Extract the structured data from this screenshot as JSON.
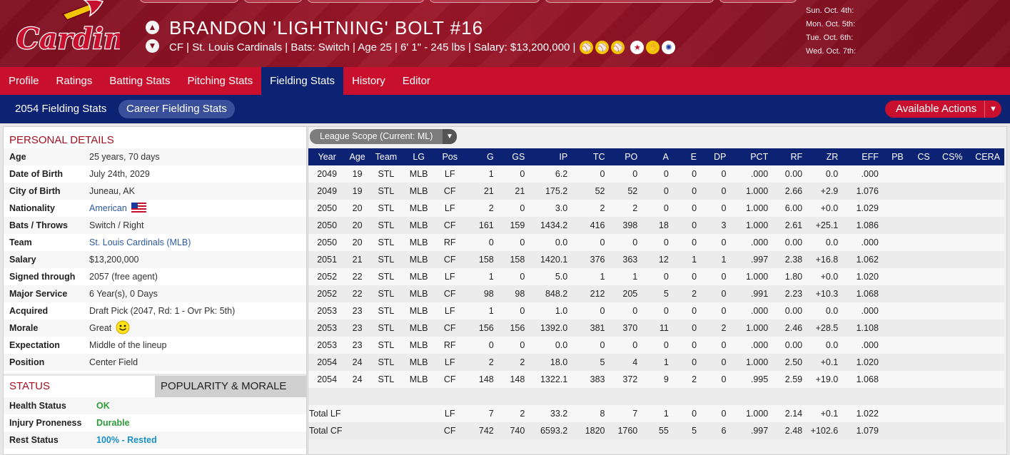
{
  "header": {
    "team_logo": "Cardinals",
    "player_name": "BRANDON 'LIGHTNING' BOLT  #16",
    "player_info": "CF | St. Louis Cardinals  |  Bats: Switch  |  Age 25  |  6' 1\" - 245 lbs  |  Salary: $13,200,000  |",
    "schedule": [
      "Sun. Oct. 4th:",
      "Mon. Oct. 5th:",
      "Tue. Oct. 6th:",
      "Wed. Oct. 7th:"
    ],
    "badges": [
      "baseball-icon",
      "baseball-icon",
      "baseball-icon",
      "star-icon",
      "glove-icon",
      "all-star-icon"
    ]
  },
  "nav": {
    "items": [
      "Profile",
      "Ratings",
      "Batting Stats",
      "Pitching Stats",
      "Fielding Stats",
      "History",
      "Editor"
    ],
    "active": "Fielding Stats"
  },
  "subnav": {
    "items": [
      "2054 Fielding Stats",
      "Career Fielding Stats"
    ],
    "active": "Career Fielding Stats",
    "actions_label": "Available Actions"
  },
  "personal": {
    "title": "PERSONAL DETAILS",
    "rows": [
      {
        "label": "Age",
        "value": "25 years, 70 days"
      },
      {
        "label": "Date of Birth",
        "value": "July 24th, 2029"
      },
      {
        "label": "City of Birth",
        "value": "Juneau, AK"
      },
      {
        "label": "Nationality",
        "value": "American",
        "link": true,
        "icon": "us-flag-icon"
      },
      {
        "label": "Bats / Throws",
        "value": "Switch / Right"
      },
      {
        "label": "Team",
        "value": "St. Louis Cardinals (MLB)",
        "link": true
      },
      {
        "label": "Salary",
        "value": "$13,200,000"
      },
      {
        "label": "Signed through",
        "value": "2057 (free agent)"
      },
      {
        "label": "Major Service",
        "value": "6 Year(s), 0 Days"
      },
      {
        "label": "Acquired",
        "value": "Draft Pick (2047, Rd: 1 - Ovr Pk: 5th)"
      },
      {
        "label": "Morale",
        "value": "Great",
        "icon": "smiley-icon"
      },
      {
        "label": "Expectation",
        "value": "Middle of the lineup"
      },
      {
        "label": "Position",
        "value": "Center Field"
      }
    ]
  },
  "status": {
    "tabs": [
      "STATUS",
      "POPULARITY & MORALE"
    ],
    "rows": [
      {
        "label": "Health Status",
        "value": "OK",
        "color": "#2e9a3a"
      },
      {
        "label": "Injury Proneness",
        "value": "Durable",
        "color": "#2e9a3a"
      },
      {
        "label": "Rest Status",
        "value": "100% - Rested",
        "color": "#1a8fc4"
      }
    ]
  },
  "scope": {
    "label": "League Scope  (Current: ML)"
  },
  "table": {
    "columns": [
      "Year",
      "Age",
      "Team",
      "LG",
      "Pos",
      "G",
      "GS",
      "IP",
      "TC",
      "PO",
      "A",
      "E",
      "DP",
      "PCT",
      "RF",
      "ZR",
      "EFF",
      "PB",
      "CS",
      "CS%",
      "CERA"
    ],
    "rows": [
      [
        "2049",
        "19",
        "STL",
        "MLB",
        "LF",
        "1",
        "0",
        "6.2",
        "0",
        "0",
        "0",
        "0",
        "0",
        ".000",
        "0.00",
        "0.0",
        ".000",
        "",
        "",
        "",
        ""
      ],
      [
        "2049",
        "19",
        "STL",
        "MLB",
        "CF",
        "21",
        "21",
        "175.2",
        "52",
        "52",
        "0",
        "0",
        "0",
        "1.000",
        "2.66",
        "+2.9",
        "1.076",
        "",
        "",
        "",
        ""
      ],
      [
        "2050",
        "20",
        "STL",
        "MLB",
        "LF",
        "2",
        "0",
        "3.0",
        "2",
        "2",
        "0",
        "0",
        "0",
        "1.000",
        "6.00",
        "+0.0",
        "1.029",
        "",
        "",
        "",
        ""
      ],
      [
        "2050",
        "20",
        "STL",
        "MLB",
        "CF",
        "161",
        "159",
        "1434.2",
        "416",
        "398",
        "18",
        "0",
        "3",
        "1.000",
        "2.61",
        "+25.1",
        "1.086",
        "",
        "",
        "",
        ""
      ],
      [
        "2050",
        "20",
        "STL",
        "MLB",
        "RF",
        "0",
        "0",
        "0.0",
        "0",
        "0",
        "0",
        "0",
        "0",
        ".000",
        "0.00",
        "0.0",
        ".000",
        "",
        "",
        "",
        ""
      ],
      [
        "2051",
        "21",
        "STL",
        "MLB",
        "CF",
        "158",
        "158",
        "1420.1",
        "376",
        "363",
        "12",
        "1",
        "1",
        ".997",
        "2.38",
        "+16.8",
        "1.062",
        "",
        "",
        "",
        ""
      ],
      [
        "2052",
        "22",
        "STL",
        "MLB",
        "LF",
        "1",
        "0",
        "5.0",
        "1",
        "1",
        "0",
        "0",
        "0",
        "1.000",
        "1.80",
        "+0.0",
        "1.020",
        "",
        "",
        "",
        ""
      ],
      [
        "2052",
        "22",
        "STL",
        "MLB",
        "CF",
        "98",
        "98",
        "848.2",
        "212",
        "205",
        "5",
        "2",
        "0",
        ".991",
        "2.23",
        "+10.3",
        "1.068",
        "",
        "",
        "",
        ""
      ],
      [
        "2053",
        "23",
        "STL",
        "MLB",
        "LF",
        "1",
        "0",
        "1.0",
        "0",
        "0",
        "0",
        "0",
        "0",
        ".000",
        "0.00",
        "0.0",
        ".000",
        "",
        "",
        "",
        ""
      ],
      [
        "2053",
        "23",
        "STL",
        "MLB",
        "CF",
        "156",
        "156",
        "1392.0",
        "381",
        "370",
        "11",
        "0",
        "2",
        "1.000",
        "2.46",
        "+28.5",
        "1.108",
        "",
        "",
        "",
        ""
      ],
      [
        "2053",
        "23",
        "STL",
        "MLB",
        "RF",
        "0",
        "0",
        "0.0",
        "0",
        "0",
        "0",
        "0",
        "0",
        ".000",
        "0.00",
        "0.0",
        ".000",
        "",
        "",
        "",
        ""
      ],
      [
        "2054",
        "24",
        "STL",
        "MLB",
        "LF",
        "2",
        "2",
        "18.0",
        "5",
        "4",
        "1",
        "0",
        "0",
        "1.000",
        "2.50",
        "+0.1",
        "1.020",
        "",
        "",
        "",
        ""
      ],
      [
        "2054",
        "24",
        "STL",
        "MLB",
        "CF",
        "148",
        "148",
        "1322.1",
        "383",
        "372",
        "9",
        "2",
        "0",
        ".995",
        "2.59",
        "+19.0",
        "1.068",
        "",
        "",
        "",
        ""
      ]
    ],
    "totals": [
      {
        "label": "Total LF",
        "cells": [
          "LF",
          "7",
          "2",
          "33.2",
          "8",
          "7",
          "1",
          "0",
          "0",
          "1.000",
          "2.14",
          "+0.1",
          "1.022",
          "",
          "",
          "",
          ""
        ]
      },
      {
        "label": "Total CF",
        "cells": [
          "CF",
          "742",
          "740",
          "6593.2",
          "1820",
          "1760",
          "55",
          "5",
          "6",
          ".997",
          "2.48",
          "+102.6",
          "1.079",
          "",
          "",
          "",
          ""
        ]
      }
    ]
  },
  "colors": {
    "cardinals_red": "#c8102e",
    "navy": "#0c2272",
    "header_red": "#9b1628"
  }
}
